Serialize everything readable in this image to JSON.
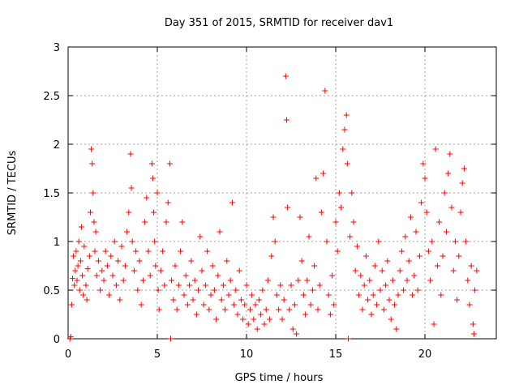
{
  "chart_data": {
    "type": "scatter",
    "title": "Day 351 of 2015, SRMTID for receiver dav1",
    "xlabel": "GPS time / hours",
    "ylabel": "SRMTID / TECUs",
    "xlim": [
      0,
      24
    ],
    "ylim": [
      0,
      3
    ],
    "xticks": [
      0,
      5,
      10,
      15,
      20
    ],
    "xtick_labels": [
      "0",
      "5",
      "10",
      "15",
      "20"
    ],
    "yticks": [
      0,
      0.5,
      1,
      1.5,
      2,
      2.5,
      3
    ],
    "ytick_labels": [
      "0",
      "0.5",
      "1",
      "1.5",
      "2",
      "2.5",
      "3"
    ],
    "grid": true,
    "marker": "plus",
    "color": "#ff0000",
    "series": [
      {
        "name": "dav1",
        "points": [
          [
            0.1,
            0.0
          ],
          [
            0.15,
            0.02
          ],
          [
            0.2,
            0.35
          ],
          [
            0.25,
            0.62
          ],
          [
            0.3,
            0.85
          ],
          [
            0.35,
            0.55
          ],
          [
            0.4,
            0.7
          ],
          [
            0.45,
            0.9
          ],
          [
            0.5,
            0.6
          ],
          [
            0.55,
            0.75
          ],
          [
            0.6,
            1.0
          ],
          [
            0.65,
            0.5
          ],
          [
            0.7,
            0.8
          ],
          [
            0.75,
            1.15
          ],
          [
            0.8,
            0.65
          ],
          [
            0.85,
            0.45
          ],
          [
            0.9,
            0.95
          ],
          [
            1.0,
            0.55
          ],
          [
            1.05,
            0.4
          ],
          [
            1.1,
            0.72
          ],
          [
            1.2,
            0.85
          ],
          [
            1.25,
            1.3
          ],
          [
            1.3,
            1.95
          ],
          [
            1.35,
            1.8
          ],
          [
            1.4,
            1.5
          ],
          [
            1.45,
            1.2
          ],
          [
            1.5,
            0.9
          ],
          [
            1.55,
            1.1
          ],
          [
            1.6,
            0.65
          ],
          [
            1.7,
            0.8
          ],
          [
            1.8,
            0.5
          ],
          [
            1.9,
            0.7
          ],
          [
            2.0,
            0.6
          ],
          [
            2.1,
            0.9
          ],
          [
            2.2,
            0.75
          ],
          [
            2.3,
            0.45
          ],
          [
            2.4,
            0.85
          ],
          [
            2.5,
            0.65
          ],
          [
            2.6,
            1.0
          ],
          [
            2.7,
            0.55
          ],
          [
            2.8,
            0.8
          ],
          [
            2.9,
            0.4
          ],
          [
            3.0,
            0.95
          ],
          [
            3.1,
            0.6
          ],
          [
            3.2,
            0.75
          ],
          [
            3.3,
            1.1
          ],
          [
            3.4,
            1.3
          ],
          [
            3.5,
            1.9
          ],
          [
            3.55,
            1.55
          ],
          [
            3.6,
            1.0
          ],
          [
            3.7,
            0.7
          ],
          [
            3.8,
            0.9
          ],
          [
            3.9,
            0.5
          ],
          [
            4.0,
            0.8
          ],
          [
            4.1,
            0.35
          ],
          [
            4.2,
            0.6
          ],
          [
            4.3,
            1.2
          ],
          [
            4.4,
            1.45
          ],
          [
            4.5,
            0.9
          ],
          [
            4.6,
            0.65
          ],
          [
            4.7,
            1.8
          ],
          [
            4.75,
            1.65
          ],
          [
            4.8,
            1.3
          ],
          [
            4.85,
            1.0
          ],
          [
            4.9,
            0.75
          ],
          [
            5.0,
            1.5
          ],
          [
            5.05,
            0.5
          ],
          [
            5.1,
            0.3
          ],
          [
            5.2,
            0.7
          ],
          [
            5.3,
            0.9
          ],
          [
            5.4,
            0.55
          ],
          [
            5.5,
            1.2
          ],
          [
            5.6,
            1.4
          ],
          [
            5.7,
            1.8
          ],
          [
            5.75,
            0.0
          ],
          [
            5.8,
            0.6
          ],
          [
            5.9,
            0.4
          ],
          [
            6.0,
            0.75
          ],
          [
            6.1,
            0.3
          ],
          [
            6.2,
            0.55
          ],
          [
            6.3,
            0.9
          ],
          [
            6.4,
            1.2
          ],
          [
            6.5,
            0.45
          ],
          [
            6.6,
            0.65
          ],
          [
            6.7,
            0.35
          ],
          [
            6.8,
            0.55
          ],
          [
            6.9,
            0.8
          ],
          [
            7.0,
            0.4
          ],
          [
            7.1,
            0.6
          ],
          [
            7.2,
            0.25
          ],
          [
            7.3,
            0.5
          ],
          [
            7.4,
            1.05
          ],
          [
            7.5,
            0.7
          ],
          [
            7.6,
            0.35
          ],
          [
            7.7,
            0.55
          ],
          [
            7.8,
            0.9
          ],
          [
            7.9,
            0.3
          ],
          [
            8.0,
            0.45
          ],
          [
            8.1,
            0.75
          ],
          [
            8.2,
            0.5
          ],
          [
            8.3,
            0.2
          ],
          [
            8.4,
            0.65
          ],
          [
            8.5,
            1.1
          ],
          [
            8.6,
            0.4
          ],
          [
            8.7,
            0.55
          ],
          [
            8.8,
            0.3
          ],
          [
            8.9,
            0.8
          ],
          [
            9.0,
            0.45
          ],
          [
            9.1,
            0.6
          ],
          [
            9.2,
            1.4
          ],
          [
            9.3,
            0.35
          ],
          [
            9.4,
            0.5
          ],
          [
            9.5,
            0.25
          ],
          [
            9.6,
            0.7
          ],
          [
            9.7,
            0.4
          ],
          [
            9.8,
            0.2
          ],
          [
            9.9,
            0.35
          ],
          [
            10.0,
            0.55
          ],
          [
            10.1,
            0.15
          ],
          [
            10.2,
            0.3
          ],
          [
            10.3,
            0.45
          ],
          [
            10.4,
            0.2
          ],
          [
            10.5,
            0.35
          ],
          [
            10.6,
            0.1
          ],
          [
            10.7,
            0.4
          ],
          [
            10.8,
            0.25
          ],
          [
            10.9,
            0.5
          ],
          [
            11.0,
            0.15
          ],
          [
            11.1,
            0.3
          ],
          [
            11.2,
            0.6
          ],
          [
            11.3,
            0.2
          ],
          [
            11.4,
            0.85
          ],
          [
            11.5,
            1.25
          ],
          [
            11.6,
            1.0
          ],
          [
            11.7,
            0.45
          ],
          [
            11.8,
            0.3
          ],
          [
            11.9,
            0.55
          ],
          [
            12.0,
            0.2
          ],
          [
            12.1,
            0.4
          ],
          [
            12.2,
            2.7
          ],
          [
            12.25,
            2.25
          ],
          [
            12.3,
            1.35
          ],
          [
            12.4,
            0.3
          ],
          [
            12.5,
            0.55
          ],
          [
            12.6,
            0.1
          ],
          [
            12.7,
            0.35
          ],
          [
            12.8,
            0.05
          ],
          [
            12.9,
            0.6
          ],
          [
            13.0,
            1.25
          ],
          [
            13.1,
            0.8
          ],
          [
            13.2,
            0.45
          ],
          [
            13.3,
            0.25
          ],
          [
            13.4,
            0.6
          ],
          [
            13.5,
            1.05
          ],
          [
            13.6,
            0.35
          ],
          [
            13.7,
            0.5
          ],
          [
            13.8,
            0.75
          ],
          [
            13.9,
            1.65
          ],
          [
            14.0,
            0.3
          ],
          [
            14.1,
            0.55
          ],
          [
            14.2,
            1.3
          ],
          [
            14.3,
            1.7
          ],
          [
            14.4,
            2.55
          ],
          [
            14.5,
            1.0
          ],
          [
            14.6,
            0.45
          ],
          [
            14.7,
            0.25
          ],
          [
            14.8,
            0.65
          ],
          [
            14.9,
            0.35
          ],
          [
            15.0,
            1.2
          ],
          [
            15.1,
            0.9
          ],
          [
            15.2,
            1.5
          ],
          [
            15.3,
            1.35
          ],
          [
            15.4,
            1.95
          ],
          [
            15.5,
            2.15
          ],
          [
            15.6,
            2.3
          ],
          [
            15.65,
            1.8
          ],
          [
            15.7,
            0.0
          ],
          [
            15.8,
            1.05
          ],
          [
            15.9,
            1.5
          ],
          [
            16.0,
            1.2
          ],
          [
            16.1,
            0.7
          ],
          [
            16.2,
            0.95
          ],
          [
            16.3,
            0.45
          ],
          [
            16.4,
            0.65
          ],
          [
            16.5,
            0.3
          ],
          [
            16.6,
            0.55
          ],
          [
            16.7,
            0.85
          ],
          [
            16.8,
            0.4
          ],
          [
            16.9,
            0.6
          ],
          [
            17.0,
            0.25
          ],
          [
            17.1,
            0.45
          ],
          [
            17.2,
            0.75
          ],
          [
            17.3,
            0.35
          ],
          [
            17.4,
            1.0
          ],
          [
            17.5,
            0.5
          ],
          [
            17.6,
            0.7
          ],
          [
            17.7,
            0.3
          ],
          [
            17.8,
            0.55
          ],
          [
            17.9,
            0.8
          ],
          [
            18.0,
            0.4
          ],
          [
            18.1,
            0.2
          ],
          [
            18.2,
            0.6
          ],
          [
            18.3,
            0.35
          ],
          [
            18.4,
            0.1
          ],
          [
            18.5,
            0.45
          ],
          [
            18.6,
            0.7
          ],
          [
            18.7,
            0.9
          ],
          [
            18.8,
            0.5
          ],
          [
            18.9,
            1.05
          ],
          [
            19.0,
            0.6
          ],
          [
            19.1,
            0.8
          ],
          [
            19.2,
            1.25
          ],
          [
            19.3,
            0.45
          ],
          [
            19.4,
            0.65
          ],
          [
            19.5,
            1.1
          ],
          [
            19.6,
            0.5
          ],
          [
            19.7,
            0.85
          ],
          [
            19.8,
            1.4
          ],
          [
            19.9,
            1.8
          ],
          [
            20.0,
            1.65
          ],
          [
            20.1,
            1.3
          ],
          [
            20.2,
            0.9
          ],
          [
            20.3,
            0.6
          ],
          [
            20.4,
            1.0
          ],
          [
            20.5,
            0.15
          ],
          [
            20.6,
            1.95
          ],
          [
            20.7,
            0.75
          ],
          [
            20.8,
            1.2
          ],
          [
            20.9,
            0.45
          ],
          [
            21.0,
            0.85
          ],
          [
            21.1,
            1.5
          ],
          [
            21.2,
            1.1
          ],
          [
            21.3,
            1.7
          ],
          [
            21.4,
            1.9
          ],
          [
            21.5,
            1.35
          ],
          [
            21.6,
            0.7
          ],
          [
            21.7,
            1.0
          ],
          [
            21.8,
            0.4
          ],
          [
            21.9,
            0.85
          ],
          [
            22.0,
            1.3
          ],
          [
            22.1,
            1.6
          ],
          [
            22.2,
            1.75
          ],
          [
            22.3,
            1.0
          ],
          [
            22.4,
            0.6
          ],
          [
            22.5,
            0.35
          ],
          [
            22.6,
            0.75
          ],
          [
            22.7,
            0.15
          ],
          [
            22.75,
            0.05
          ],
          [
            22.8,
            0.5
          ],
          [
            22.9,
            0.7
          ]
        ]
      }
    ]
  }
}
